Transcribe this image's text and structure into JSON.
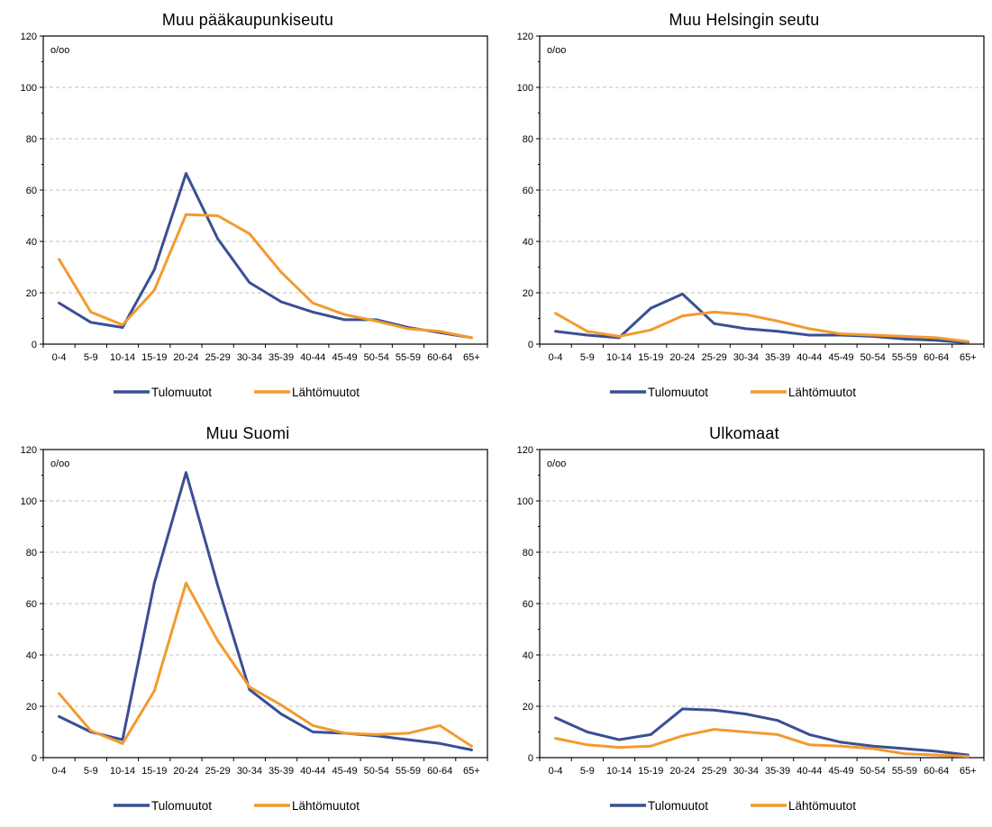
{
  "legend": {
    "inflow_label": "Tulomuutot",
    "outflow_label": "Lähtömuutot"
  },
  "colors": {
    "inflow": "#3a4f94",
    "outflow": "#f39a2e",
    "grid": "#c0c0c0",
    "axis": "#000000"
  },
  "chart_data": [
    {
      "type": "line",
      "title": "Muu pääkaupunkiseutu",
      "unit_label": "o/oo",
      "ylim": [
        0,
        120
      ],
      "yticks": [
        0,
        20,
        40,
        60,
        80,
        100,
        120
      ],
      "grid": true,
      "legend_position": "bottom",
      "categories": [
        "0-4",
        "5-9",
        "10-14",
        "15-19",
        "20-24",
        "25-29",
        "30-34",
        "35-39",
        "40-44",
        "45-49",
        "50-54",
        "55-59",
        "60-64",
        "65+"
      ],
      "series": [
        {
          "name": "Tulomuutot",
          "values": [
            16,
            8.5,
            6.5,
            29,
            66.5,
            41,
            24,
            16.5,
            12.5,
            9.5,
            9.5,
            6.5,
            4.5,
            2.5
          ]
        },
        {
          "name": "Lähtömuutot",
          "values": [
            33,
            12.5,
            7.5,
            21,
            50.5,
            50,
            43,
            28,
            16,
            11.5,
            9,
            6,
            5,
            2.5
          ]
        }
      ]
    },
    {
      "type": "line",
      "title": "Muu Helsingin seutu",
      "unit_label": "o/oo",
      "ylim": [
        0,
        120
      ],
      "yticks": [
        0,
        20,
        40,
        60,
        80,
        100,
        120
      ],
      "grid": true,
      "legend_position": "bottom",
      "categories": [
        "0-4",
        "5-9",
        "10-14",
        "15-19",
        "20-24",
        "25-29",
        "30-34",
        "35-39",
        "40-44",
        "45-49",
        "50-54",
        "55-59",
        "60-64",
        "65+"
      ],
      "series": [
        {
          "name": "Tulomuutot",
          "values": [
            5,
            3.5,
            2.5,
            14,
            19.5,
            8,
            6,
            5,
            3.5,
            3.5,
            3,
            2,
            1.5,
            0.5
          ]
        },
        {
          "name": "Lähtömuutot",
          "values": [
            12,
            5,
            3,
            5.5,
            11,
            12.5,
            11.5,
            9,
            6,
            4,
            3.5,
            3,
            2.5,
            1
          ]
        }
      ]
    },
    {
      "type": "line",
      "title": "Muu Suomi",
      "unit_label": "o/oo",
      "ylim": [
        0,
        120
      ],
      "yticks": [
        0,
        20,
        40,
        60,
        80,
        100,
        120
      ],
      "grid": true,
      "legend_position": "bottom",
      "categories": [
        "0-4",
        "5-9",
        "10-14",
        "15-19",
        "20-24",
        "25-29",
        "30-34",
        "35-39",
        "40-44",
        "45-49",
        "50-54",
        "55-59",
        "60-64",
        "65+"
      ],
      "series": [
        {
          "name": "Tulomuutot",
          "values": [
            16,
            10,
            7,
            68,
            111,
            67,
            26.5,
            17,
            10,
            9.5,
            8.5,
            7,
            5.5,
            3
          ]
        },
        {
          "name": "Lähtömuutot",
          "values": [
            25,
            10.5,
            5.5,
            26,
            68,
            45.5,
            27.5,
            20.5,
            12.5,
            9.5,
            9,
            9.5,
            12.5,
            4.5
          ]
        }
      ]
    },
    {
      "type": "line",
      "title": "Ulkomaat",
      "unit_label": "o/oo",
      "ylim": [
        0,
        120
      ],
      "yticks": [
        0,
        20,
        40,
        60,
        80,
        100,
        120
      ],
      "grid": true,
      "legend_position": "bottom",
      "categories": [
        "0-4",
        "5-9",
        "10-14",
        "15-19",
        "20-24",
        "25-29",
        "30-34",
        "35-39",
        "40-44",
        "45-49",
        "50-54",
        "55-59",
        "60-64",
        "65+"
      ],
      "series": [
        {
          "name": "Tulomuutot",
          "values": [
            15.5,
            10,
            7,
            9,
            19,
            18.5,
            17,
            14.5,
            9,
            6,
            4.5,
            3.5,
            2.5,
            1
          ]
        },
        {
          "name": "Lähtömuutot",
          "values": [
            7.5,
            5,
            4,
            4.5,
            8.5,
            11,
            10,
            9,
            5,
            4.5,
            3.5,
            1.5,
            1,
            0.5
          ]
        }
      ]
    }
  ]
}
